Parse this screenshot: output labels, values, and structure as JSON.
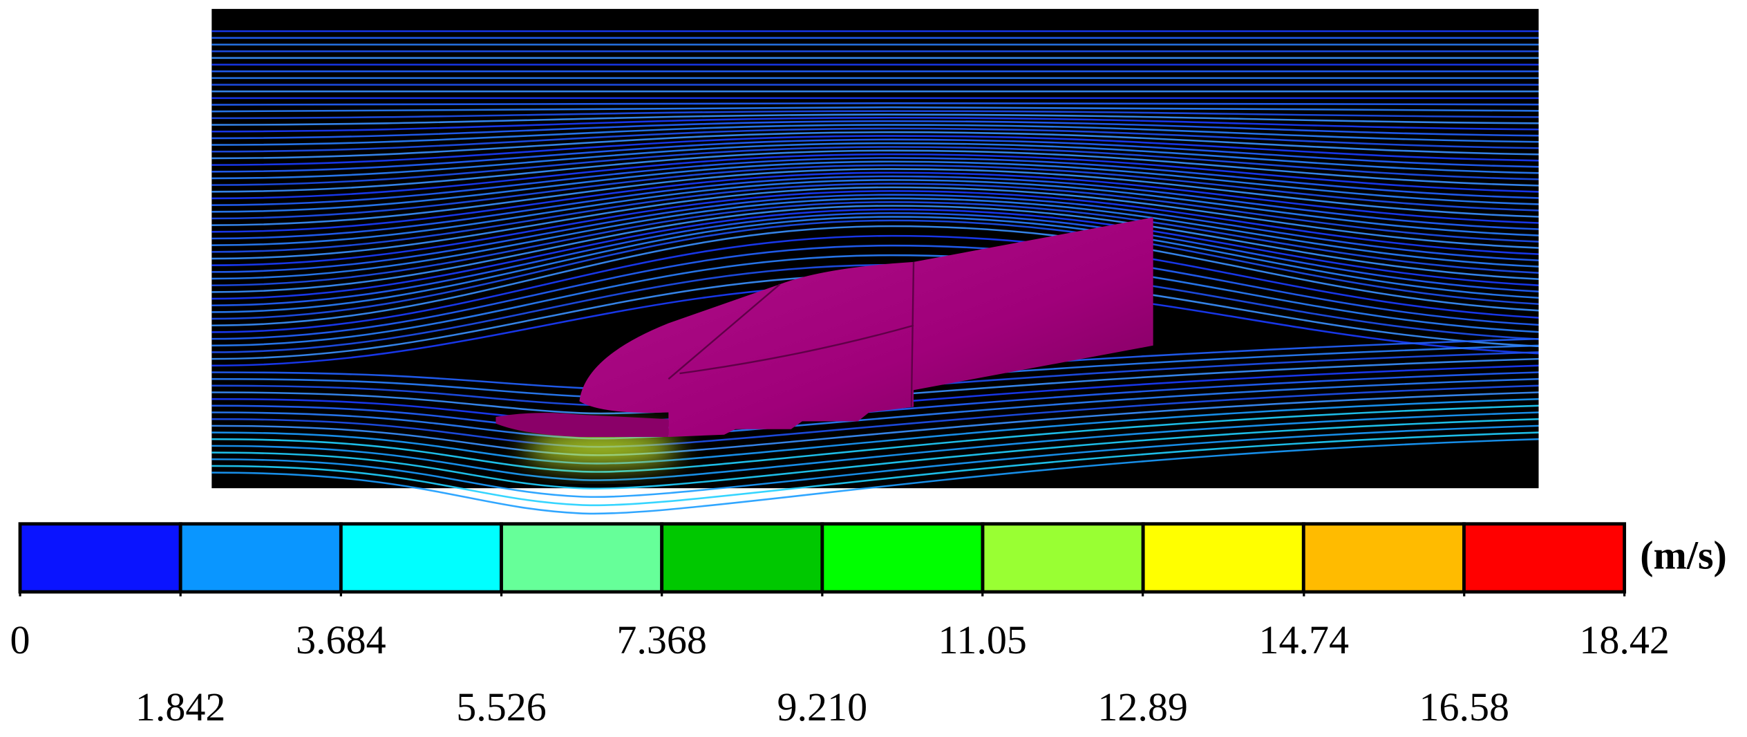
{
  "colorbar": {
    "unit": "(m/s)",
    "colors": [
      "#0a14ff",
      "#0a96ff",
      "#00ffff",
      "#66ff99",
      "#00c800",
      "#00ff00",
      "#99ff33",
      "#ffff00",
      "#ffbb00",
      "#ff0000"
    ],
    "ticks": [
      0,
      1.842,
      3.684,
      5.526,
      7.368,
      {
        "value": 9.21,
        "label": "9.210"
      },
      11.05,
      12.89,
      14.74,
      16.58,
      18.42
    ]
  }
}
